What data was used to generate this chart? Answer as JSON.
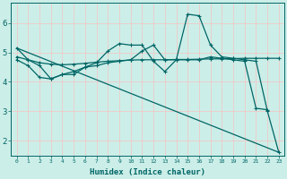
{
  "xlabel": "Humidex (Indice chaleur)",
  "bg_color": "#cceee8",
  "line_color": "#006666",
  "grid_color": "#f0c8c8",
  "xlim": [
    -0.5,
    23.5
  ],
  "ylim": [
    1.5,
    6.7
  ],
  "yticks": [
    2,
    3,
    4,
    5,
    6
  ],
  "xticks": [
    0,
    1,
    2,
    3,
    4,
    5,
    6,
    7,
    8,
    9,
    10,
    11,
    12,
    13,
    14,
    15,
    16,
    17,
    18,
    19,
    20,
    21,
    22,
    23
  ],
  "line1_x": [
    0,
    1,
    2,
    3,
    4,
    5,
    6,
    7,
    8,
    9,
    10,
    11,
    12,
    13,
    14,
    15,
    16,
    17,
    18,
    19,
    20,
    21,
    22,
    23
  ],
  "line1_y": [
    5.15,
    4.75,
    4.55,
    4.1,
    4.25,
    4.25,
    4.5,
    4.65,
    5.05,
    5.3,
    5.25,
    5.25,
    4.7,
    4.35,
    4.75,
    4.75,
    4.75,
    4.85,
    4.8,
    4.75,
    4.7,
    3.1,
    3.05,
    null
  ],
  "line2_x": [
    0,
    1,
    2,
    3,
    4,
    5,
    6,
    7,
    8,
    9,
    10,
    11,
    12,
    13,
    14,
    15,
    16,
    17,
    18,
    19,
    20,
    21,
    22,
    23
  ],
  "line2_y": [
    4.75,
    4.55,
    4.15,
    4.1,
    4.25,
    4.35,
    4.5,
    4.55,
    4.65,
    4.7,
    4.75,
    5.05,
    5.25,
    4.75,
    4.75,
    6.3,
    6.25,
    5.25,
    4.85,
    4.8,
    4.75,
    4.7,
    3.0,
    1.6
  ],
  "line3_x": [
    0,
    23
  ],
  "line3_y": [
    5.15,
    1.6
  ],
  "line4_x": [
    0,
    1,
    2,
    3,
    4,
    5,
    6,
    7,
    8,
    9,
    10,
    11,
    12,
    13,
    14,
    15,
    16,
    17,
    18,
    19,
    20,
    21,
    22,
    23
  ],
  "line4_y": [
    4.85,
    4.75,
    4.65,
    4.6,
    4.58,
    4.6,
    4.63,
    4.67,
    4.7,
    4.72,
    4.74,
    4.75,
    4.75,
    4.75,
    4.76,
    4.76,
    4.77,
    4.78,
    4.78,
    4.79,
    4.8,
    4.8,
    4.8,
    4.8
  ]
}
